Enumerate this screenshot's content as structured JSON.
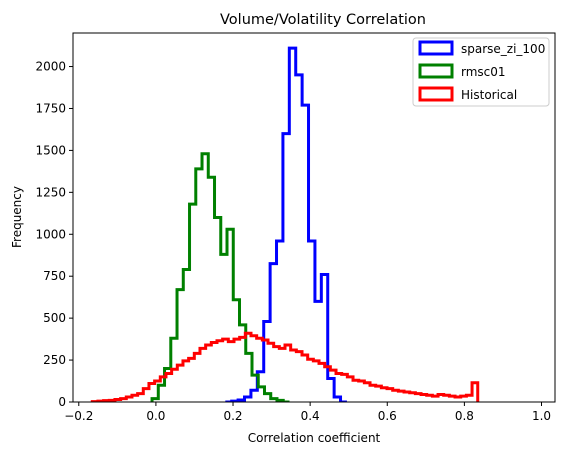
{
  "chart_data": {
    "type": "histogram-step",
    "title": "Volume/Volatility Correlation",
    "xlabel": "Correlation coefficient",
    "ylabel": "Frequency",
    "xlim": [
      -0.215,
      1.035
    ],
    "ylim": [
      0,
      2200
    ],
    "xticks": [
      -0.2,
      0.0,
      0.2,
      0.4,
      0.6,
      0.8,
      1.0
    ],
    "xtick_labels": [
      "−0.2",
      "0.0",
      "0.2",
      "0.4",
      "0.6",
      "0.8",
      "1.0"
    ],
    "yticks": [
      0,
      250,
      500,
      750,
      1000,
      1250,
      1500,
      1750,
      2000
    ],
    "ytick_labels": [
      "0",
      "250",
      "500",
      "750",
      "1000",
      "1250",
      "1500",
      "1750",
      "2000"
    ],
    "legend_position": "top-right",
    "series": [
      {
        "name": "sparse_zi_100",
        "color": "#0000ff",
        "bin_start": 0.18,
        "bin_width": 0.0166,
        "values": [
          0,
          5,
          12,
          30,
          70,
          180,
          480,
          825,
          960,
          1600,
          2110,
          1950,
          1770,
          960,
          600,
          760,
          140,
          30,
          0
        ]
      },
      {
        "name": "rmsc01",
        "color": "#008000",
        "bin_start": -0.01,
        "bin_width": 0.0162,
        "values": [
          20,
          100,
          200,
          380,
          670,
          790,
          1180,
          1390,
          1480,
          1340,
          1100,
          880,
          1030,
          610,
          460,
          290,
          160,
          90,
          50,
          20,
          10,
          0
        ]
      },
      {
        "name": "Historical",
        "color": "#ff0000",
        "bin_start": -0.165,
        "bin_width": 0.0147,
        "values": [
          2,
          5,
          8,
          10,
          15,
          20,
          30,
          40,
          50,
          80,
          110,
          125,
          150,
          170,
          195,
          220,
          245,
          260,
          290,
          320,
          340,
          355,
          365,
          375,
          360,
          375,
          385,
          410,
          395,
          380,
          370,
          350,
          330,
          320,
          340,
          310,
          300,
          280,
          255,
          245,
          230,
          210,
          190,
          170,
          165,
          150,
          130,
          125,
          115,
          100,
          95,
          85,
          80,
          70,
          65,
          60,
          55,
          50,
          45,
          40,
          35,
          45,
          40,
          35,
          30,
          35,
          40,
          115
        ]
      }
    ]
  }
}
